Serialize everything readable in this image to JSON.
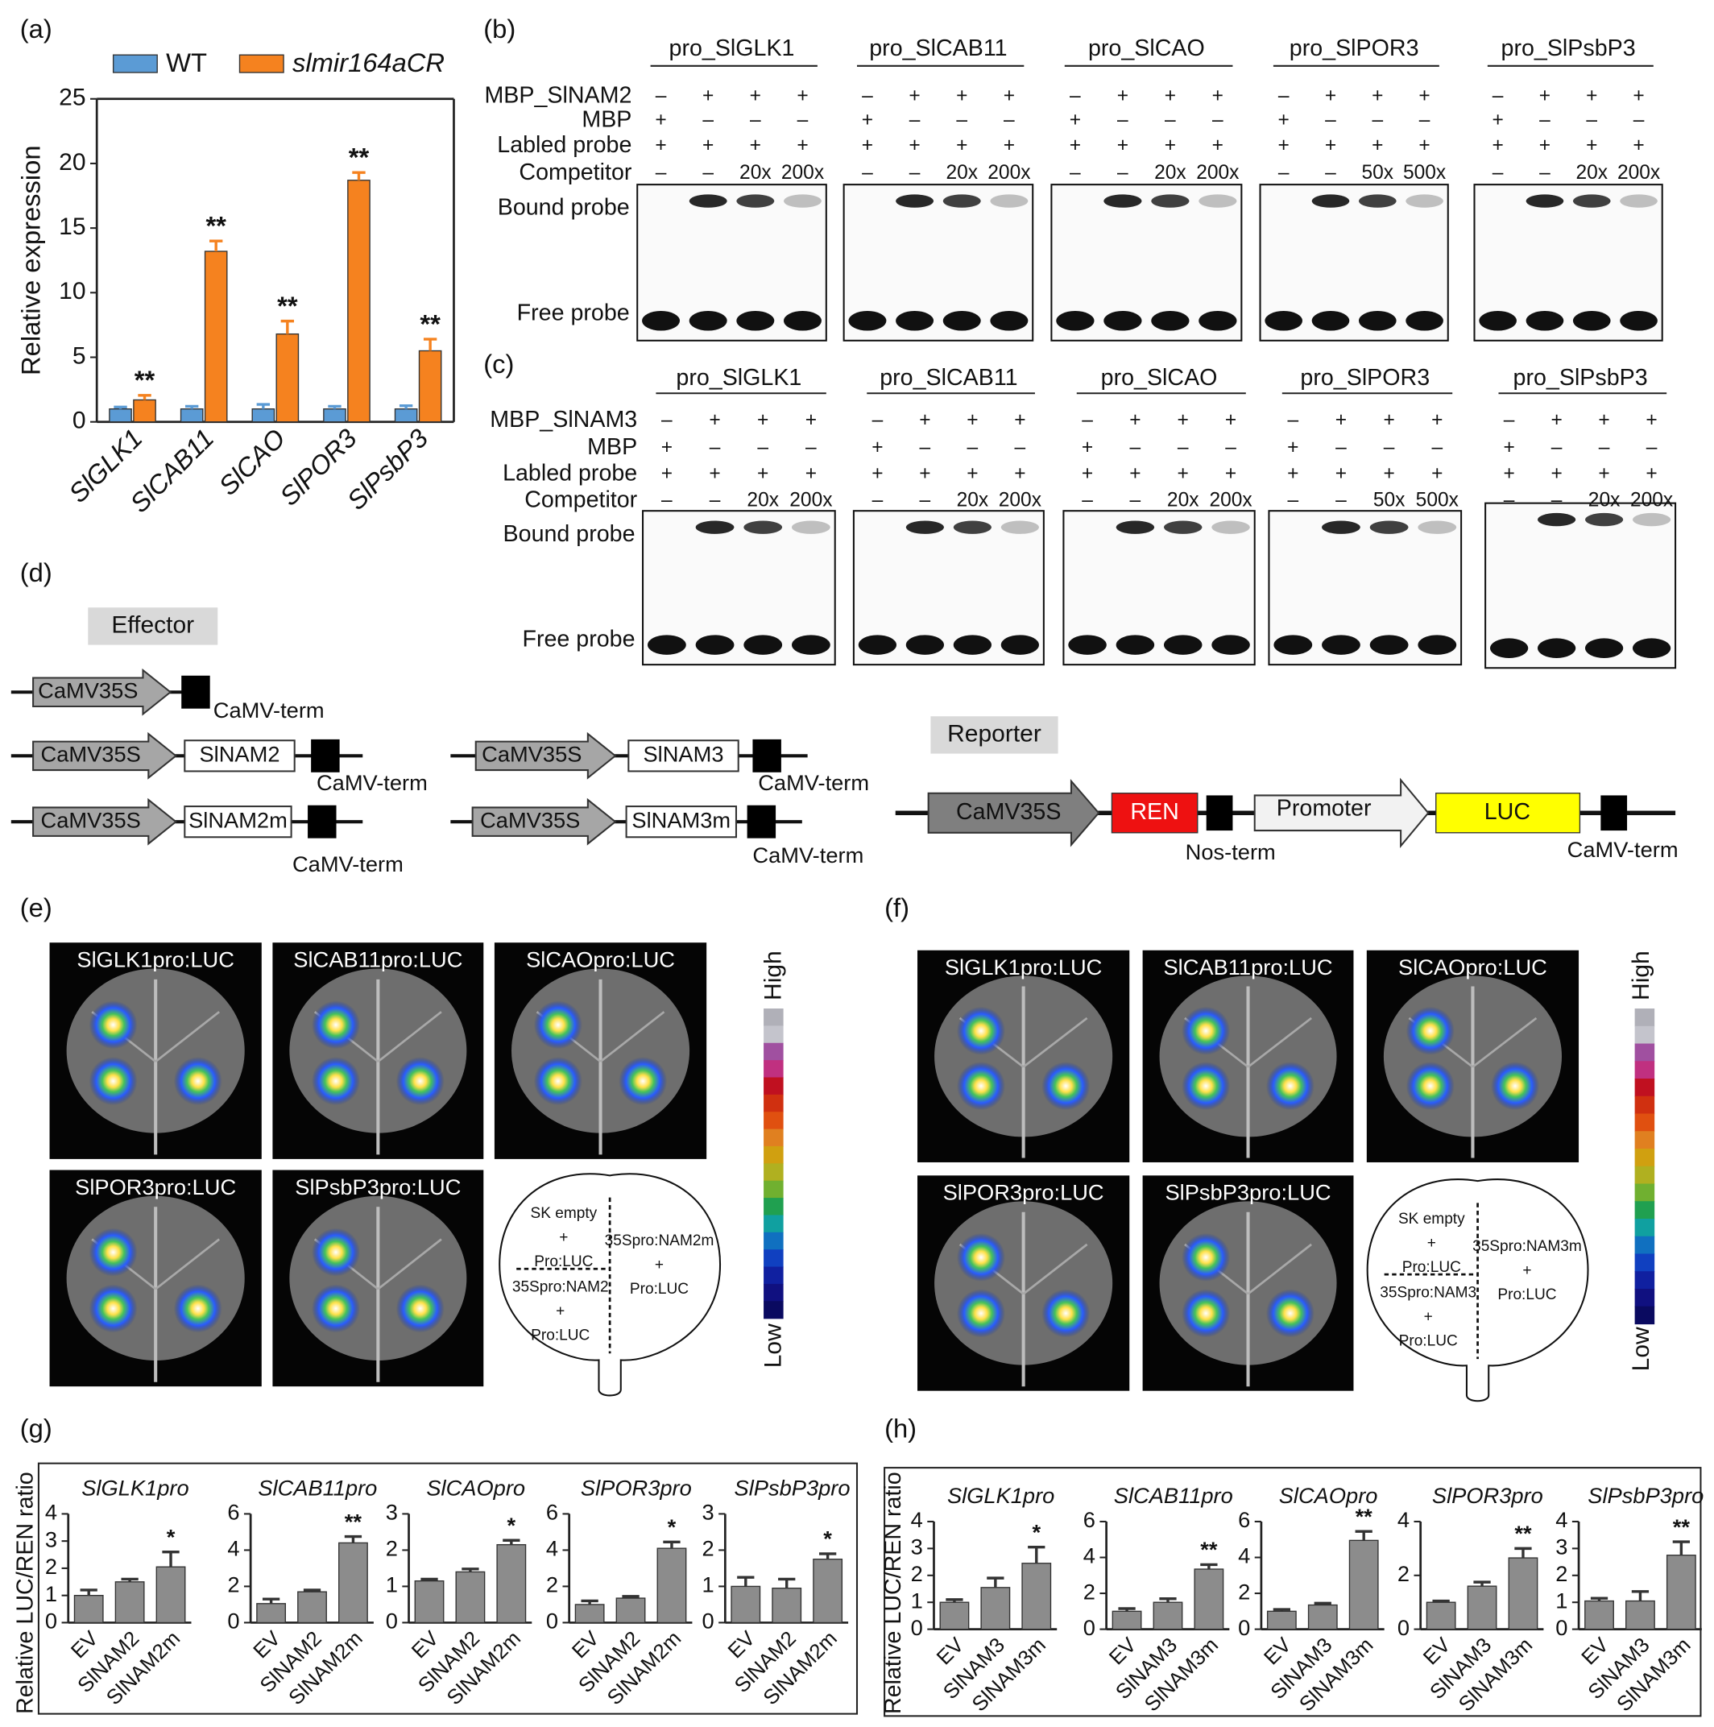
{
  "panel_labels": [
    "(a)",
    "(b)",
    "(c)",
    "(d)",
    "(e)",
    "(f)",
    "(g)",
    "(h)"
  ],
  "chart_data": [
    {
      "type": "bar",
      "ylabel": "Relative expression",
      "categories": [
        "SlGLK1",
        "SlCAB11",
        "SlCAO",
        "SlPOR3",
        "SlPsbP3"
      ],
      "series": [
        {
          "name": "WT",
          "color": "#5b9bd5",
          "values": [
            1,
            1,
            1,
            1,
            1
          ],
          "errors": [
            0.15,
            0.2,
            0.35,
            0.2,
            0.25
          ]
        },
        {
          "name": "slmir164aCR",
          "color": "#f5821f",
          "values": [
            1.7,
            13.2,
            6.8,
            18.7,
            5.5
          ],
          "errors": [
            0.35,
            0.8,
            1.0,
            0.6,
            0.9
          ],
          "annotations": [
            "**",
            "**",
            "**",
            "**",
            "**"
          ]
        }
      ],
      "ylim": [
        0,
        25
      ],
      "yticks": [
        0,
        5,
        10,
        15,
        20,
        25
      ]
    },
    {
      "type": "bar",
      "title": "SlGLK1pro",
      "ylabel": "Relative LUC/REN ratio",
      "categories": [
        "EV",
        "SlNAM2",
        "SlNAM2m"
      ],
      "color": "#8c8c8c",
      "values": [
        1.0,
        1.5,
        2.05
      ],
      "errors": [
        0.2,
        0.1,
        0.55
      ],
      "annotations": [
        null,
        null,
        "*"
      ],
      "ylim": [
        0,
        4
      ],
      "yticks": [
        0,
        1,
        2,
        3,
        4
      ]
    },
    {
      "type": "bar",
      "title": "SlCAB11pro",
      "categories": [
        "EV",
        "SlNAM2",
        "SlNAM2m"
      ],
      "color": "#8c8c8c",
      "values": [
        1.05,
        1.7,
        4.4
      ],
      "errors": [
        0.25,
        0.1,
        0.35
      ],
      "annotations": [
        null,
        null,
        "**"
      ],
      "ylim": [
        0,
        6
      ],
      "yticks": [
        0,
        2,
        4,
        6
      ]
    },
    {
      "type": "bar",
      "title": "SlCAOpro",
      "categories": [
        "EV",
        "SlNAM2",
        "SlNAM2m"
      ],
      "color": "#8c8c8c",
      "values": [
        1.15,
        1.4,
        2.15
      ],
      "errors": [
        0.05,
        0.08,
        0.12
      ],
      "annotations": [
        null,
        null,
        "*"
      ],
      "ylim": [
        0,
        3
      ],
      "yticks": [
        0,
        1,
        2,
        3
      ]
    },
    {
      "type": "bar",
      "title": "SlPOR3pro",
      "categories": [
        "EV",
        "SlNAM2",
        "SlNAM2m"
      ],
      "color": "#8c8c8c",
      "values": [
        1.0,
        1.35,
        4.1
      ],
      "errors": [
        0.2,
        0.1,
        0.35
      ],
      "annotations": [
        null,
        null,
        "*"
      ],
      "ylim": [
        0,
        6
      ],
      "yticks": [
        0,
        2,
        4,
        6
      ]
    },
    {
      "type": "bar",
      "title": "SlPsbP3pro",
      "categories": [
        "EV",
        "SlNAM2",
        "SlNAM2m"
      ],
      "color": "#8c8c8c",
      "values": [
        1.0,
        0.95,
        1.75
      ],
      "errors": [
        0.25,
        0.25,
        0.15
      ],
      "annotations": [
        null,
        null,
        "*"
      ],
      "ylim": [
        0,
        3
      ],
      "yticks": [
        0,
        1,
        2,
        3
      ]
    },
    {
      "type": "bar",
      "title": "SlGLK1pro",
      "ylabel": "Relative LUC/REN ratio",
      "categories": [
        "EV",
        "SlNAM3",
        "SlNAM3m"
      ],
      "color": "#8c8c8c",
      "values": [
        1.0,
        1.55,
        2.45
      ],
      "errors": [
        0.1,
        0.35,
        0.6
      ],
      "annotations": [
        null,
        null,
        "*"
      ],
      "ylim": [
        0,
        4
      ],
      "yticks": [
        0,
        1,
        2,
        3,
        4
      ]
    },
    {
      "type": "bar",
      "title": "SlCAB11pro",
      "categories": [
        "EV",
        "SlNAM3",
        "SlNAM3m"
      ],
      "color": "#8c8c8c",
      "values": [
        1.0,
        1.5,
        3.35
      ],
      "errors": [
        0.15,
        0.2,
        0.25
      ],
      "annotations": [
        null,
        null,
        "**"
      ],
      "ylim": [
        0,
        6
      ],
      "yticks": [
        0,
        2,
        4,
        6
      ]
    },
    {
      "type": "bar",
      "title": "SlCAOpro",
      "categories": [
        "EV",
        "SlNAM3",
        "SlNAM3m"
      ],
      "color": "#8c8c8c",
      "values": [
        1.0,
        1.35,
        4.95
      ],
      "errors": [
        0.1,
        0.1,
        0.5
      ],
      "annotations": [
        null,
        null,
        "**"
      ],
      "ylim": [
        0,
        6
      ],
      "yticks": [
        0,
        2,
        4,
        6
      ]
    },
    {
      "type": "bar",
      "title": "SlPOR3pro",
      "categories": [
        "EV",
        "SlNAM3",
        "SlNAM3m"
      ],
      "color": "#8c8c8c",
      "values": [
        1.0,
        1.6,
        2.65
      ],
      "errors": [
        0.05,
        0.15,
        0.35
      ],
      "annotations": [
        null,
        null,
        "**"
      ],
      "ylim": [
        0,
        4
      ],
      "yticks": [
        0,
        2,
        4
      ]
    },
    {
      "type": "bar",
      "title": "SlPsbP3pro",
      "categories": [
        "EV",
        "SlNAM3",
        "SlNAM3m"
      ],
      "color": "#8c8c8c",
      "values": [
        1.05,
        1.05,
        2.75
      ],
      "errors": [
        0.1,
        0.35,
        0.5
      ],
      "annotations": [
        null,
        null,
        "**"
      ],
      "ylim": [
        0,
        4
      ],
      "yticks": [
        0,
        1,
        2,
        3,
        4
      ]
    }
  ],
  "emsa": [
    {
      "row_labels": [
        "MBP_SlNAM2",
        "MBP",
        "Labled probe",
        "Competitor"
      ],
      "band_labels": [
        "Bound probe",
        "Free probe"
      ],
      "groups": [
        {
          "title": "pro_SlGLK1",
          "rows": [
            [
              "–",
              "+",
              "+",
              "+"
            ],
            [
              "+",
              "–",
              "–",
              "–"
            ],
            [
              "+",
              "+",
              "+",
              "+"
            ],
            [
              "–",
              "–",
              "20x",
              "200x"
            ]
          ]
        },
        {
          "title": "pro_SlCAB11",
          "rows": [
            [
              "–",
              "+",
              "+",
              "+"
            ],
            [
              "+",
              "–",
              "–",
              "–"
            ],
            [
              "+",
              "+",
              "+",
              "+"
            ],
            [
              "–",
              "–",
              "20x",
              "200x"
            ]
          ]
        },
        {
          "title": "pro_SlCAO",
          "rows": [
            [
              "–",
              "+",
              "+",
              "+"
            ],
            [
              "+",
              "–",
              "–",
              "–"
            ],
            [
              "+",
              "+",
              "+",
              "+"
            ],
            [
              "–",
              "–",
              "20x",
              "200x"
            ]
          ]
        },
        {
          "title": "pro_SlPOR3",
          "rows": [
            [
              "–",
              "+",
              "+",
              "+"
            ],
            [
              "+",
              "–",
              "–",
              "–"
            ],
            [
              "+",
              "+",
              "+",
              "+"
            ],
            [
              "–",
              "–",
              "50x",
              "500x"
            ]
          ]
        },
        {
          "title": "pro_SlPsbP3",
          "rows": [
            [
              "–",
              "+",
              "+",
              "+"
            ],
            [
              "+",
              "–",
              "–",
              "–"
            ],
            [
              "+",
              "+",
              "+",
              "+"
            ],
            [
              "–",
              "–",
              "20x",
              "200x"
            ]
          ]
        }
      ]
    },
    {
      "row_labels": [
        "MBP_SlNAM3",
        "MBP",
        "Labled probe",
        "Competitor"
      ],
      "band_labels": [
        "Bound probe",
        "Free probe"
      ],
      "groups": [
        {
          "title": "pro_SlGLK1",
          "rows": [
            [
              "–",
              "+",
              "+",
              "+"
            ],
            [
              "+",
              "–",
              "–",
              "–"
            ],
            [
              "+",
              "+",
              "+",
              "+"
            ],
            [
              "–",
              "–",
              "20x",
              "200x"
            ]
          ]
        },
        {
          "title": "pro_SlCAB11",
          "rows": [
            [
              "–",
              "+",
              "+",
              "+"
            ],
            [
              "+",
              "–",
              "–",
              "–"
            ],
            [
              "+",
              "+",
              "+",
              "+"
            ],
            [
              "–",
              "–",
              "20x",
              "200x"
            ]
          ]
        },
        {
          "title": "pro_SlCAO",
          "rows": [
            [
              "–",
              "+",
              "+",
              "+"
            ],
            [
              "+",
              "–",
              "–",
              "–"
            ],
            [
              "+",
              "+",
              "+",
              "+"
            ],
            [
              "–",
              "–",
              "20x",
              "200x"
            ]
          ]
        },
        {
          "title": "pro_SlPOR3",
          "rows": [
            [
              "–",
              "+",
              "+",
              "+"
            ],
            [
              "+",
              "–",
              "–",
              "–"
            ],
            [
              "+",
              "+",
              "+",
              "+"
            ],
            [
              "–",
              "–",
              "50x",
              "500x"
            ]
          ]
        },
        {
          "title": "pro_SlPsbP3",
          "rows": [
            [
              "–",
              "+",
              "+",
              "+"
            ],
            [
              "+",
              "–",
              "–",
              "–"
            ],
            [
              "+",
              "+",
              "+",
              "+"
            ],
            [
              "–",
              "–",
              "20x",
              "200x"
            ]
          ]
        }
      ]
    }
  ],
  "constructs": {
    "effector_label": "Effector",
    "reporter_label": "Reporter",
    "effector": [
      {
        "promoter": "CaMV35S",
        "terminator": "CaMV-term"
      },
      {
        "promoter": "CaMV35S",
        "gene": "SlNAM2",
        "terminator": "CaMV-term"
      },
      {
        "promoter": "CaMV35S",
        "gene": "SlNAM2m",
        "terminator": "CaMV-term"
      },
      {
        "promoter": "CaMV35S",
        "gene": "SlNAM3",
        "terminator": "CaMV-term"
      },
      {
        "promoter": "CaMV35S",
        "gene": "SlNAM3m",
        "terminator": "CaMV-term"
      }
    ],
    "reporter": {
      "promoter": "CaMV35S",
      "renilla": "REN",
      "nos_terminator": "Nos-term",
      "test_promoter": "Promoter",
      "luciferase": "LUC",
      "terminator": "CaMV-term"
    }
  },
  "luc_imaging": [
    {
      "images": [
        "SlGLK1pro:LUC",
        "SlCAB11pro:LUC",
        "SlCAOpro:LUC",
        "SlPOR3pro:LUC",
        "SlPsbP3pro:LUC"
      ],
      "scale_high": "High",
      "scale_low": "Low",
      "scheme": {
        "top_left": [
          "SK empty",
          "+",
          "Pro:LUC"
        ],
        "bottom_left": [
          "35Spro:NAM2",
          "+",
          "Pro:LUC"
        ],
        "bottom_right": [
          "35Spro:NAM2m",
          "+",
          "Pro:LUC"
        ]
      }
    },
    {
      "images": [
        "SlGLK1pro:LUC",
        "SlCAB11pro:LUC",
        "SlCAOpro:LUC",
        "SlPOR3pro:LUC",
        "SlPsbP3pro:LUC"
      ],
      "scale_high": "High",
      "scale_low": "Low",
      "scheme": {
        "top_left": [
          "SK empty",
          "+",
          "Pro:LUC"
        ],
        "bottom_left": [
          "35Spro:NAM3",
          "+",
          "Pro:LUC"
        ],
        "bottom_right": [
          "35Spro:NAM3m",
          "+",
          "Pro:LUC"
        ]
      }
    }
  ]
}
